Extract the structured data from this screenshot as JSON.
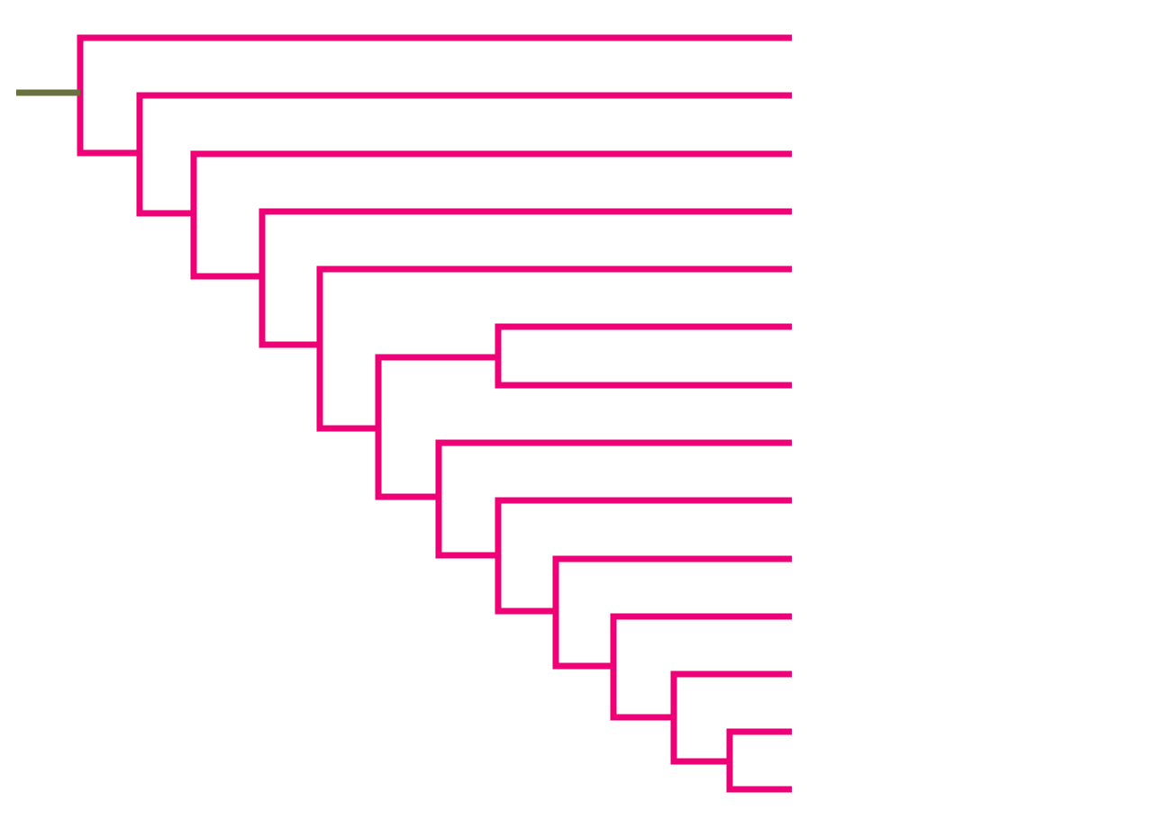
{
  "link_color": "#ee0077",
  "root_color": "#6b7040"
}
